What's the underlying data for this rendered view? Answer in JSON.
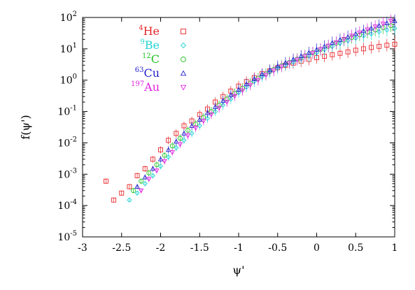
{
  "chart_data": {
    "type": "scatter",
    "xlabel": "ψ'",
    "ylabel": "f(ψ')",
    "xlim": [
      -3,
      1
    ],
    "ylim_log10": [
      -5,
      2
    ],
    "y_scale": "log",
    "grid": false,
    "legend_placement": "top-left",
    "x_ticks": [
      "-3",
      "-2.5",
      "-2",
      "-1.5",
      "-1",
      "-0.5",
      "0",
      "0.5",
      "1"
    ],
    "y_ticks": [
      {
        "base": "10",
        "exp": "-5"
      },
      {
        "base": "10",
        "exp": "-4"
      },
      {
        "base": "10",
        "exp": "-3"
      },
      {
        "base": "10",
        "exp": "-2"
      },
      {
        "base": "10",
        "exp": "-1"
      },
      {
        "base": "10",
        "exp": "0"
      },
      {
        "base": "10",
        "exp": "1"
      },
      {
        "base": "10",
        "exp": "2"
      }
    ],
    "series": [
      {
        "name": "He",
        "sup": "4",
        "marker": "square",
        "color": "#e8262b",
        "x": [
          -2.7,
          -2.6,
          -2.5,
          -2.4,
          -2.3,
          -2.2,
          -2.1,
          -2.0,
          -1.9,
          -1.8,
          -1.7,
          -1.6,
          -1.5,
          -1.4,
          -1.3,
          -1.2,
          -1.1,
          -1.0,
          -0.9,
          -0.8,
          -0.7,
          -0.6,
          -0.5,
          -0.4,
          -0.3,
          -0.2,
          -0.1,
          0.0,
          0.1,
          0.2,
          0.3,
          0.4,
          0.5,
          0.6,
          0.7,
          0.8,
          0.9,
          1.0
        ],
        "y": [
          0.0006,
          0.00015,
          0.00025,
          0.0004,
          0.0009,
          0.0015,
          0.003,
          0.006,
          0.012,
          0.02,
          0.035,
          0.05,
          0.08,
          0.12,
          0.2,
          0.3,
          0.45,
          0.65,
          0.9,
          1.2,
          1.6,
          2.0,
          2.5,
          3.0,
          3.5,
          4.0,
          4.6,
          5.2,
          5.8,
          6.5,
          7.2,
          8.0,
          9.0,
          10,
          11,
          12,
          13,
          14
        ]
      },
      {
        "name": "Be",
        "sup": "9",
        "marker": "diamond",
        "color": "#22d3d3",
        "x": [
          -2.4,
          -2.3,
          -2.2,
          -2.1,
          -2.0,
          -1.9,
          -1.8,
          -1.7,
          -1.6,
          -1.5,
          -1.4,
          -1.3,
          -1.2,
          -1.1,
          -1.0,
          -0.9,
          -0.8,
          -0.7,
          -0.6,
          -0.5,
          -0.4,
          -0.3,
          -0.2,
          -0.1,
          0.0,
          0.1,
          0.2,
          0.3,
          0.4,
          0.5,
          0.6,
          0.7,
          0.8,
          0.9,
          1.0
        ],
        "y": [
          0.00015,
          0.00025,
          0.0005,
          0.0009,
          0.0018,
          0.0035,
          0.007,
          0.012,
          0.02,
          0.035,
          0.06,
          0.1,
          0.16,
          0.25,
          0.4,
          0.6,
          0.9,
          1.3,
          1.8,
          2.4,
          3.0,
          3.8,
          4.8,
          6.0,
          7.5,
          9.5,
          12,
          15,
          18,
          22,
          26,
          30,
          35,
          40,
          45
        ]
      },
      {
        "name": "C",
        "sup": "12",
        "marker": "circle",
        "color": "#22c322",
        "x": [
          -2.35,
          -2.25,
          -2.15,
          -2.05,
          -1.95,
          -1.85,
          -1.75,
          -1.65,
          -1.55,
          -1.45,
          -1.35,
          -1.25,
          -1.15,
          -1.05,
          -0.95,
          -0.85,
          -0.75,
          -0.65,
          -0.55,
          -0.45,
          -0.35,
          -0.25,
          -0.15,
          -0.05,
          0.05,
          0.15,
          0.25,
          0.35,
          0.45,
          0.55,
          0.65,
          0.75,
          0.85,
          0.95
        ],
        "y": [
          0.0003,
          0.0006,
          0.0011,
          0.002,
          0.004,
          0.008,
          0.014,
          0.025,
          0.04,
          0.065,
          0.1,
          0.16,
          0.25,
          0.38,
          0.55,
          0.8,
          1.15,
          1.6,
          2.2,
          2.9,
          3.7,
          4.7,
          6.0,
          7.5,
          9.5,
          12,
          15,
          19,
          23,
          28,
          34,
          40,
          47,
          55
        ]
      },
      {
        "name": "Cu",
        "sup": "63",
        "marker": "triangle-up",
        "color": "#2222cc",
        "x": [
          -2.3,
          -2.2,
          -2.1,
          -2.0,
          -1.9,
          -1.8,
          -1.7,
          -1.6,
          -1.5,
          -1.4,
          -1.3,
          -1.2,
          -1.1,
          -1.0,
          -0.9,
          -0.8,
          -0.7,
          -0.6,
          -0.5,
          -0.4,
          -0.3,
          -0.2,
          -0.1,
          0.0,
          0.1,
          0.2,
          0.3,
          0.4,
          0.5,
          0.6,
          0.7,
          0.8,
          0.9,
          1.0
        ],
        "y": [
          0.0004,
          0.0008,
          0.0015,
          0.003,
          0.006,
          0.011,
          0.02,
          0.035,
          0.055,
          0.09,
          0.14,
          0.22,
          0.34,
          0.5,
          0.75,
          1.1,
          1.55,
          2.1,
          2.8,
          3.6,
          4.6,
          5.9,
          7.5,
          9.5,
          12,
          15.5,
          19.5,
          24,
          30,
          37,
          45,
          55,
          66,
          78
        ]
      },
      {
        "name": "Au",
        "sup": "197",
        "marker": "triangle-down",
        "color": "#e022e0",
        "x": [
          -2.25,
          -2.15,
          -2.05,
          -1.95,
          -1.85,
          -1.75,
          -1.65,
          -1.55,
          -1.45,
          -1.35,
          -1.25,
          -1.15,
          -1.05,
          -0.95,
          -0.85,
          -0.75,
          -0.65,
          -0.55,
          -0.45,
          -0.35,
          -0.25,
          -0.15,
          -0.05,
          0.05,
          0.15,
          0.25,
          0.35,
          0.45,
          0.55,
          0.65,
          0.75,
          0.85,
          0.95
        ],
        "y": [
          0.0003,
          0.0007,
          0.0013,
          0.0026,
          0.005,
          0.009,
          0.017,
          0.03,
          0.05,
          0.08,
          0.13,
          0.2,
          0.31,
          0.47,
          0.7,
          1.0,
          1.45,
          2.0,
          2.7,
          3.5,
          4.5,
          5.8,
          7.4,
          9.6,
          12.5,
          16,
          20.5,
          26,
          33,
          41,
          51,
          63,
          78
        ]
      }
    ]
  }
}
